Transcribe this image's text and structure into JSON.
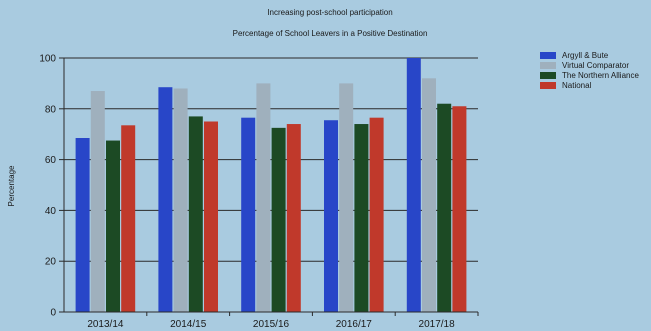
{
  "chart_data": {
    "type": "bar",
    "title": "Increasing post-school participation",
    "subtitle": "Percentage of School Leavers in a Positive Destination",
    "xlabel": "",
    "ylabel": "Percentage",
    "ylim": [
      0,
      100
    ],
    "yticks": [
      0,
      20,
      40,
      60,
      80,
      100
    ],
    "grid": true,
    "legend_position": "right",
    "categories": [
      "2013/14",
      "2014/15",
      "2015/16",
      "2016/17",
      "2017/18"
    ],
    "series": [
      {
        "name": "Argyll & Bute",
        "color": "#2846c8",
        "values": [
          68.5,
          88.5,
          76.5,
          75.5,
          100
        ]
      },
      {
        "name": "Virtual Comparator",
        "color": "#9fb0bd",
        "values": [
          87,
          88,
          90,
          90,
          92
        ]
      },
      {
        "name": "The Northern Alliance",
        "color": "#1c4a24",
        "values": [
          67.5,
          77,
          72.5,
          74,
          82
        ]
      },
      {
        "name": "National",
        "color": "#c0392b",
        "values": [
          73.5,
          75,
          74,
          76.5,
          81
        ]
      }
    ]
  }
}
